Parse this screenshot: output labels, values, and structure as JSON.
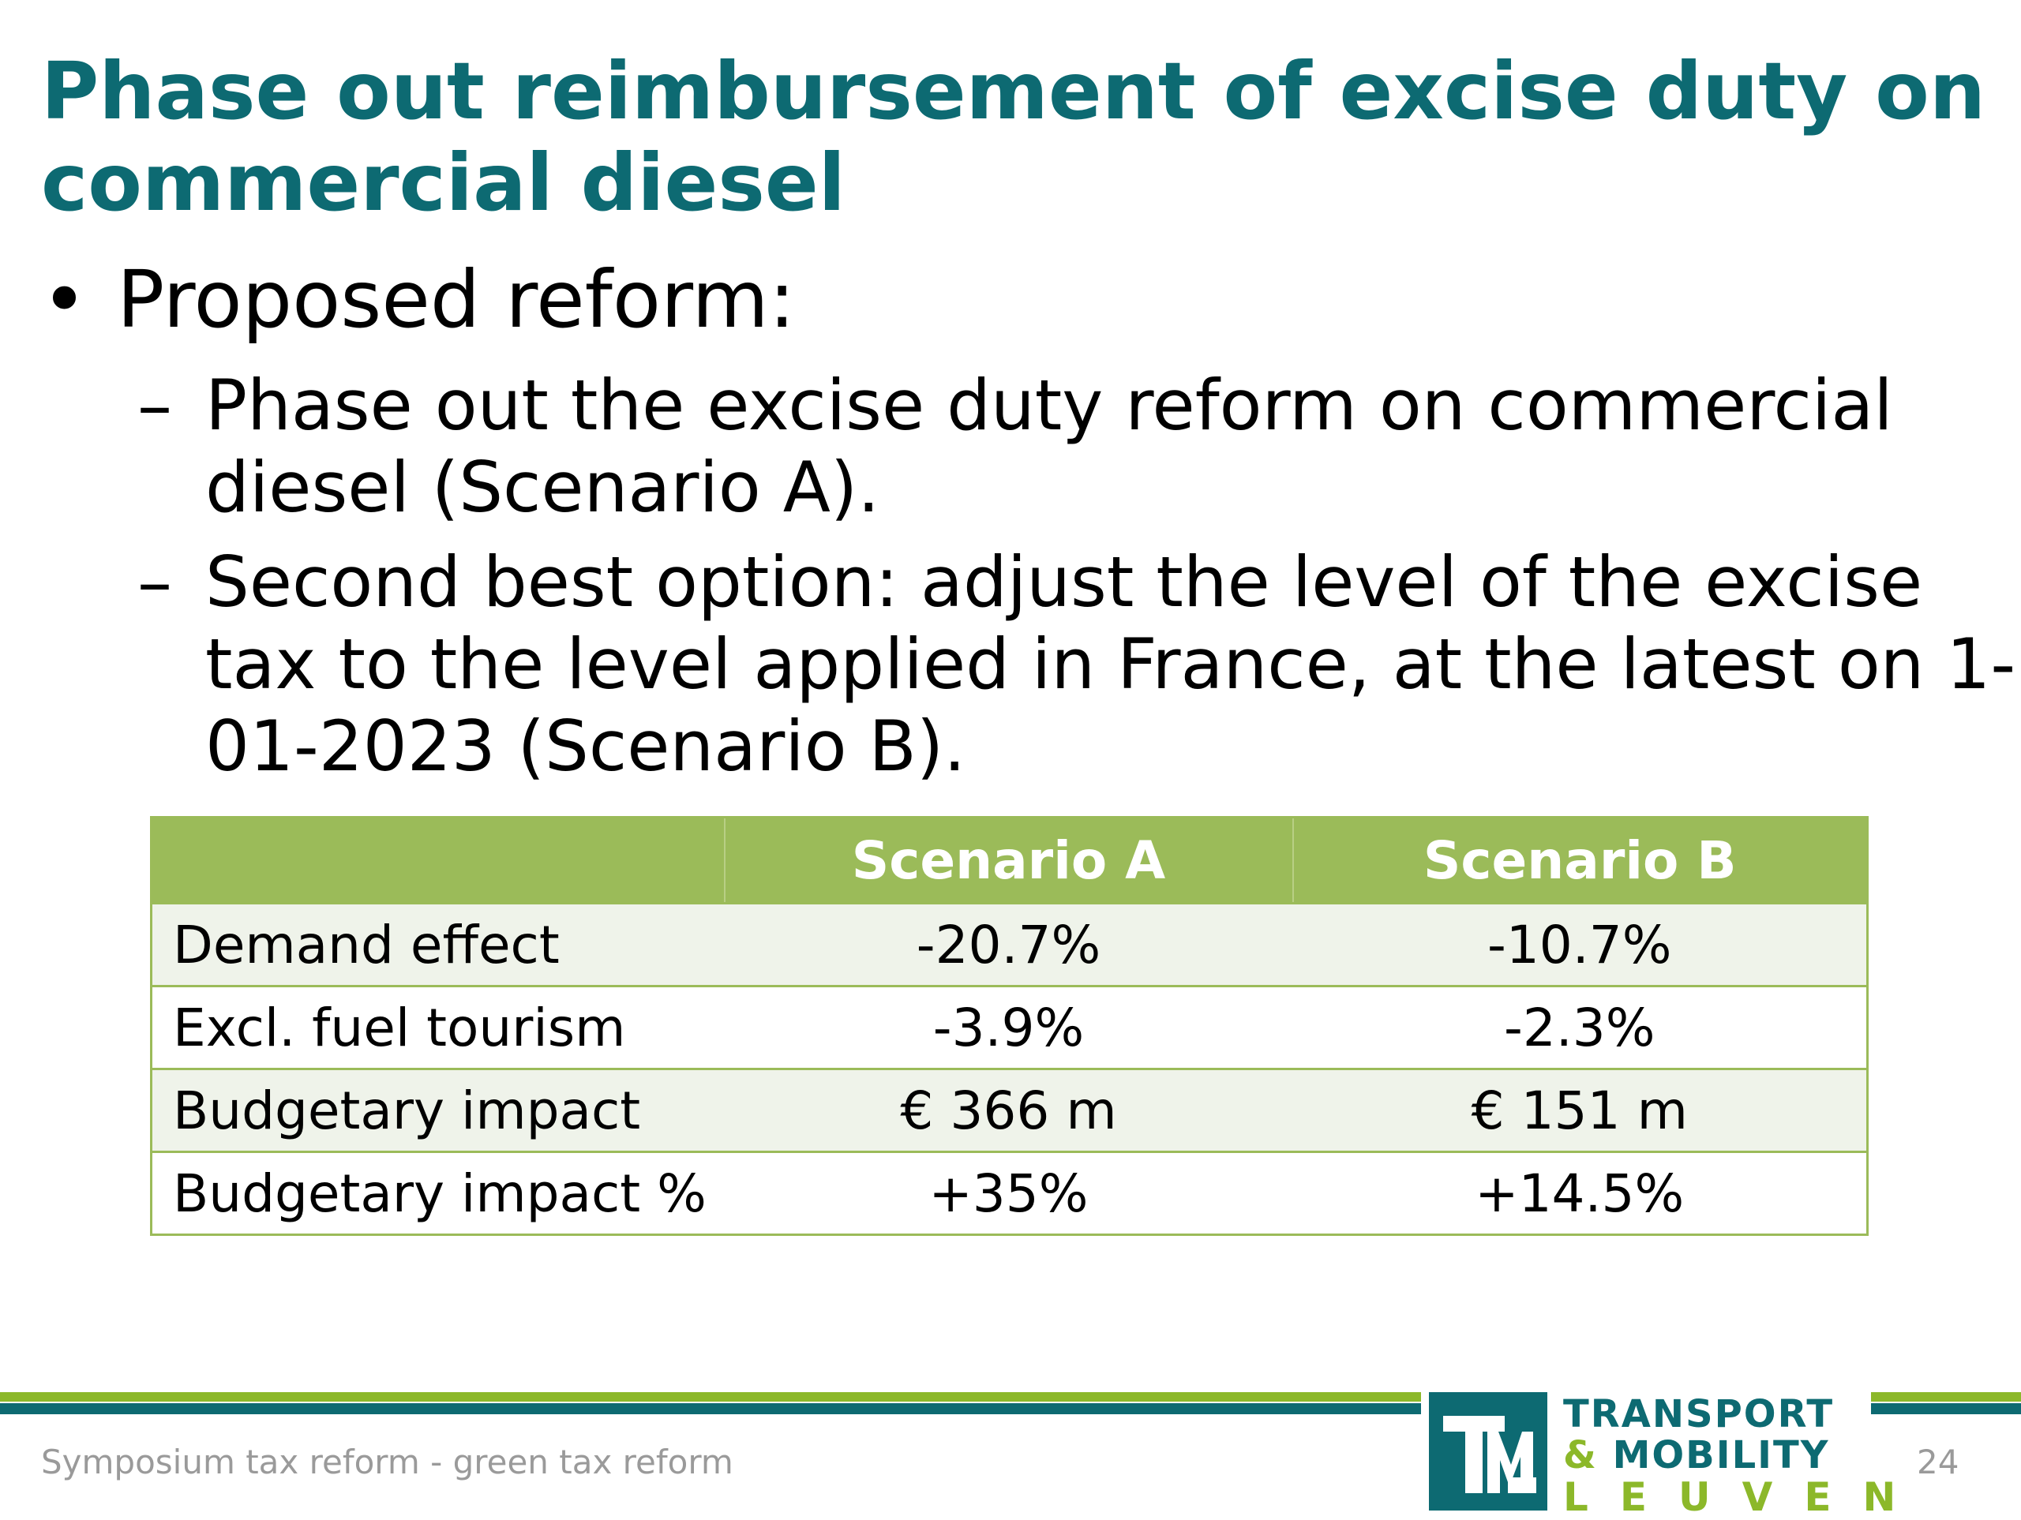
{
  "title": "Phase out reimbursement of excise duty on commercial diesel",
  "bullets": {
    "main": "Proposed reform:",
    "subs": [
      "Phase out the excise duty reform on commercial diesel (Scenario A).",
      "Second best option: adjust the level of the excise tax to the level applied in France, at the latest on 1-01-2023 (Scenario B)."
    ]
  },
  "table": {
    "headers": [
      "",
      "Scenario A",
      "Scenario B"
    ],
    "rows": [
      [
        "Demand effect",
        "-20.7%",
        "-10.7%"
      ],
      [
        "Excl. fuel tourism",
        "-3.9%",
        "-2.3%"
      ],
      [
        "Budgetary impact",
        "€ 366 m",
        "€ 151 m"
      ],
      [
        "Budgetary impact %",
        "+35%",
        "+14.5%"
      ]
    ]
  },
  "footer": {
    "left": "Symposium tax reform - green tax reform",
    "page": "24"
  },
  "logo": {
    "line1": "TRANSPORT",
    "amp": "&",
    "line2": "MOBILITY",
    "line3": "LEUVEN",
    "mark_icon": "tml-logo-icon"
  },
  "colors": {
    "title": "#0d6a72",
    "header_bg": "#9bbb59",
    "accent_green": "#8cb82a"
  }
}
